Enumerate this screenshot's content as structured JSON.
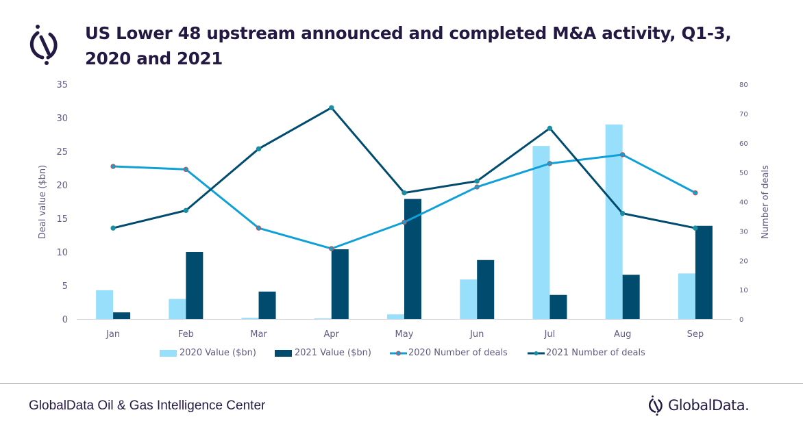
{
  "header": {
    "title": "US Lower 48 upstream announced and completed M&A activity, Q1-3, 2020 and 2021",
    "logo_icon": "globaldata-logo-icon"
  },
  "footer": {
    "source": "GlobalData Oil & Gas Intelligence Center",
    "brand": "GlobalData."
  },
  "colors": {
    "bar_2020": "#97dffb",
    "bar_2021": "#004b6e",
    "line_2020": "#0fa0d8",
    "line_2021": "#004b6e",
    "marker_2020_edge": "#c0504d",
    "marker_2021": "#1a8ea0",
    "text": "#5e5b80",
    "title": "#231942"
  },
  "chart_data": {
    "type": "bar",
    "title": "US Lower 48 upstream announced and completed M&A activity, Q1-3, 2020 and 2021",
    "categories": [
      "Jan",
      "Feb",
      "Mar",
      "Apr",
      "May",
      "Jun",
      "Jul",
      "Aug",
      "Sep"
    ],
    "xlabel": "",
    "ylabel": "Deal value ($bn)",
    "y2label": "Number of deals",
    "ylim": [
      0,
      35
    ],
    "y2lim": [
      0,
      80
    ],
    "yticks": [
      0,
      5,
      10,
      15,
      20,
      25,
      30,
      35
    ],
    "y2ticks": [
      0,
      10,
      20,
      30,
      40,
      50,
      60,
      70,
      80
    ],
    "grid": false,
    "legend_position": "bottom",
    "series": [
      {
        "name": "2020 Value ($bn)",
        "type": "bar",
        "axis": "left",
        "values": [
          4.3,
          3.0,
          0.2,
          0.1,
          0.7,
          5.9,
          25.8,
          29.0,
          6.8
        ]
      },
      {
        "name": "2021 Value ($bn)",
        "type": "bar",
        "axis": "left",
        "values": [
          1.0,
          10.0,
          4.1,
          10.4,
          17.9,
          8.8,
          3.6,
          6.6,
          13.9
        ]
      },
      {
        "name": "2020 Number of deals",
        "type": "line",
        "axis": "right",
        "values": [
          52,
          51,
          31,
          24,
          33,
          45,
          53,
          56,
          43
        ]
      },
      {
        "name": "2021 Number of deals",
        "type": "line",
        "axis": "right",
        "values": [
          31,
          37,
          58,
          72,
          43,
          47,
          65,
          36,
          31
        ]
      }
    ]
  }
}
